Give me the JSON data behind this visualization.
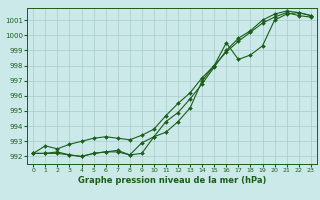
{
  "xlabel": "Graphe pression niveau de la mer (hPa)",
  "ylim": [
    991.5,
    1001.8
  ],
  "xlim": [
    -0.5,
    23.5
  ],
  "yticks": [
    992,
    993,
    994,
    995,
    996,
    997,
    998,
    999,
    1000,
    1001
  ],
  "xticks": [
    0,
    1,
    2,
    3,
    4,
    5,
    6,
    7,
    8,
    9,
    10,
    11,
    12,
    13,
    14,
    15,
    16,
    17,
    18,
    19,
    20,
    21,
    22,
    23
  ],
  "background_color": "#cce9e9",
  "grid_color": "#aacccc",
  "line_color": "#1a5e1a",
  "series1": [
    992.2,
    992.7,
    992.5,
    992.8,
    993.0,
    993.2,
    993.3,
    993.2,
    993.1,
    993.4,
    993.8,
    994.7,
    995.5,
    996.2,
    997.2,
    998.0,
    998.9,
    999.6,
    1000.2,
    1000.8,
    1001.2,
    1001.5,
    1001.3,
    1001.2
  ],
  "series2": [
    992.2,
    992.2,
    992.2,
    992.1,
    992.0,
    992.2,
    992.3,
    992.3,
    992.1,
    992.2,
    993.3,
    994.3,
    994.9,
    995.8,
    996.8,
    997.9,
    999.0,
    999.8,
    1000.3,
    1001.0,
    1001.4,
    1001.6,
    1001.5,
    1001.3
  ],
  "series3": [
    992.2,
    992.2,
    992.3,
    992.1,
    992.0,
    992.2,
    992.3,
    992.4,
    992.1,
    992.9,
    993.3,
    993.6,
    994.3,
    995.2,
    997.0,
    998.0,
    999.5,
    998.4,
    998.7,
    999.3,
    1001.0,
    1001.4,
    1001.5,
    1001.3
  ]
}
